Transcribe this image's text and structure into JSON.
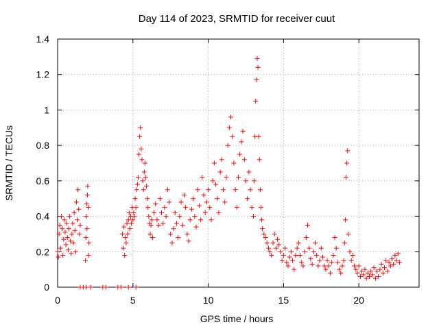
{
  "chart_data": {
    "type": "scatter",
    "title": "Day 114 of 2023, SRMTID for receiver cuut",
    "xlabel": "GPS time / hours",
    "ylabel": "SRMTID / TECUs",
    "xlim": [
      0,
      24
    ],
    "ylim": [
      0,
      1.4
    ],
    "xticks": [
      0,
      5,
      10,
      15,
      20
    ],
    "xtick_labels": [
      "0",
      "5",
      "10",
      "15",
      "20"
    ],
    "yticks": [
      0,
      0.2,
      0.4,
      0.6,
      0.8,
      1.0,
      1.2,
      1.4
    ],
    "ytick_labels": [
      "0",
      "0.2",
      "0.4",
      "0.6",
      "0.8",
      "1",
      "1.2",
      "1.4"
    ],
    "grid": true,
    "marker": "+",
    "color": "#ff0000",
    "series": [
      {
        "name": "SRMTID",
        "points": [
          [
            0.0,
            0.2
          ],
          [
            0.05,
            0.17
          ],
          [
            0.1,
            0.3
          ],
          [
            0.15,
            0.35
          ],
          [
            0.2,
            0.22
          ],
          [
            0.25,
            0.4
          ],
          [
            0.3,
            0.33
          ],
          [
            0.35,
            0.18
          ],
          [
            0.4,
            0.27
          ],
          [
            0.45,
            0.38
          ],
          [
            0.5,
            0.31
          ],
          [
            0.55,
            0.24
          ],
          [
            0.6,
            0.36
          ],
          [
            0.65,
            0.28
          ],
          [
            0.7,
            0.21
          ],
          [
            0.75,
            0.33
          ],
          [
            0.8,
            0.4
          ],
          [
            0.85,
            0.26
          ],
          [
            0.9,
            0.19
          ],
          [
            0.95,
            0.3
          ],
          [
            1.0,
            0.36
          ],
          [
            1.05,
            0.25
          ],
          [
            1.1,
            0.42
          ],
          [
            1.15,
            0.32
          ],
          [
            1.2,
            0.2
          ],
          [
            1.25,
            0.48
          ],
          [
            1.3,
            0.38
          ],
          [
            1.35,
            0.55
          ],
          [
            1.4,
            0.44
          ],
          [
            1.45,
            0.3
          ],
          [
            1.5,
            0.35
          ],
          [
            1.85,
            0.15
          ],
          [
            1.88,
            0.28
          ],
          [
            1.9,
            0.4
          ],
          [
            1.93,
            0.47
          ],
          [
            1.95,
            0.33
          ],
          [
            1.98,
            0.52
          ],
          [
            2.0,
            0.57
          ],
          [
            2.03,
            0.45
          ],
          [
            2.05,
            0.18
          ],
          [
            2.08,
            0.25
          ],
          [
            1.5,
            0.0
          ],
          [
            1.7,
            0.0
          ],
          [
            1.9,
            0.0
          ],
          [
            2.2,
            0.0
          ],
          [
            3.0,
            0.0
          ],
          [
            3.2,
            0.0
          ],
          [
            4.0,
            0.0
          ],
          [
            4.2,
            0.0
          ],
          [
            4.7,
            0.0
          ],
          [
            5.2,
            0.0
          ],
          [
            4.3,
            0.3
          ],
          [
            4.35,
            0.22
          ],
          [
            4.4,
            0.34
          ],
          [
            4.45,
            0.18
          ],
          [
            4.5,
            0.28
          ],
          [
            4.55,
            0.25
          ],
          [
            4.6,
            0.36
          ],
          [
            4.65,
            0.3
          ],
          [
            4.7,
            0.38
          ],
          [
            4.75,
            0.42
          ],
          [
            4.8,
            0.33
          ],
          [
            4.85,
            0.4
          ],
          [
            4.9,
            0.36
          ],
          [
            4.95,
            0.45
          ],
          [
            5.0,
            0.38
          ],
          [
            5.05,
            0.42
          ],
          [
            5.1,
            0.4
          ],
          [
            5.15,
            0.5
          ],
          [
            5.2,
            0.45
          ],
          [
            5.25,
            0.55
          ],
          [
            5.3,
            0.58
          ],
          [
            5.35,
            0.62
          ],
          [
            5.4,
            0.75
          ],
          [
            5.45,
            0.85
          ],
          [
            5.5,
            0.9
          ],
          [
            5.55,
            0.78
          ],
          [
            5.6,
            0.72
          ],
          [
            5.65,
            0.6
          ],
          [
            5.7,
            0.55
          ],
          [
            5.75,
            0.65
          ],
          [
            5.8,
            0.7
          ],
          [
            5.85,
            0.62
          ],
          [
            5.9,
            0.57
          ],
          [
            5.95,
            0.5
          ],
          [
            6.0,
            0.45
          ],
          [
            6.05,
            0.4
          ],
          [
            6.1,
            0.36
          ],
          [
            6.15,
            0.3
          ],
          [
            6.2,
            0.35
          ],
          [
            6.25,
            0.38
          ],
          [
            6.3,
            0.28
          ],
          [
            6.4,
            0.42
          ],
          [
            6.5,
            0.47
          ],
          [
            6.6,
            0.38
          ],
          [
            6.7,
            0.35
          ],
          [
            6.8,
            0.5
          ],
          [
            6.9,
            0.42
          ],
          [
            7.0,
            0.36
          ],
          [
            7.1,
            0.45
          ],
          [
            7.2,
            0.4
          ],
          [
            7.3,
            0.55
          ],
          [
            7.4,
            0.48
          ],
          [
            7.5,
            0.3
          ],
          [
            7.6,
            0.25
          ],
          [
            7.7,
            0.33
          ],
          [
            7.8,
            0.42
          ],
          [
            7.9,
            0.36
          ],
          [
            8.0,
            0.28
          ],
          [
            8.1,
            0.4
          ],
          [
            8.2,
            0.48
          ],
          [
            8.3,
            0.35
          ],
          [
            8.4,
            0.52
          ],
          [
            8.5,
            0.45
          ],
          [
            8.6,
            0.3
          ],
          [
            8.7,
            0.26
          ],
          [
            8.8,
            0.38
          ],
          [
            8.9,
            0.44
          ],
          [
            9.0,
            0.5
          ],
          [
            9.1,
            0.4
          ],
          [
            9.2,
            0.34
          ],
          [
            9.3,
            0.55
          ],
          [
            9.4,
            0.46
          ],
          [
            9.5,
            0.38
          ],
          [
            9.6,
            0.62
          ],
          [
            9.7,
            0.52
          ],
          [
            9.8,
            0.42
          ],
          [
            9.9,
            0.48
          ],
          [
            10.0,
            0.55
          ],
          [
            10.1,
            0.45
          ],
          [
            10.2,
            0.38
          ],
          [
            10.3,
            0.6
          ],
          [
            10.4,
            0.7
          ],
          [
            10.5,
            0.58
          ],
          [
            10.6,
            0.5
          ],
          [
            10.7,
            0.42
          ],
          [
            10.8,
            0.65
          ],
          [
            10.9,
            0.72
          ],
          [
            11.0,
            0.55
          ],
          [
            11.1,
            0.48
          ],
          [
            11.2,
            0.62
          ],
          [
            11.3,
            0.8
          ],
          [
            11.4,
            0.9
          ],
          [
            11.5,
            0.96
          ],
          [
            11.6,
            0.85
          ],
          [
            11.7,
            0.7
          ],
          [
            11.8,
            0.55
          ],
          [
            11.9,
            0.45
          ],
          [
            12.0,
            0.62
          ],
          [
            12.1,
            0.75
          ],
          [
            12.2,
            0.82
          ],
          [
            12.3,
            0.88
          ],
          [
            12.4,
            0.72
          ],
          [
            12.5,
            0.6
          ],
          [
            12.6,
            0.5
          ],
          [
            12.7,
            0.65
          ],
          [
            12.8,
            0.55
          ],
          [
            12.9,
            0.45
          ],
          [
            13.0,
            0.4
          ],
          [
            13.05,
            0.6
          ],
          [
            13.1,
            0.85
          ],
          [
            13.15,
            1.05
          ],
          [
            13.2,
            1.17
          ],
          [
            13.25,
            1.29
          ],
          [
            13.3,
            1.24
          ],
          [
            13.35,
            0.85
          ],
          [
            13.4,
            0.72
          ],
          [
            13.45,
            0.55
          ],
          [
            13.5,
            0.45
          ],
          [
            13.55,
            0.38
          ],
          [
            13.6,
            0.33
          ],
          [
            13.7,
            0.3
          ],
          [
            13.8,
            0.28
          ],
          [
            13.9,
            0.25
          ],
          [
            14.0,
            0.22
          ],
          [
            14.1,
            0.2
          ],
          [
            14.2,
            0.18
          ],
          [
            14.3,
            0.25
          ],
          [
            14.4,
            0.3
          ],
          [
            14.5,
            0.22
          ],
          [
            14.6,
            0.27
          ],
          [
            14.7,
            0.24
          ],
          [
            14.8,
            0.2
          ],
          [
            14.9,
            0.15
          ],
          [
            15.0,
            0.18
          ],
          [
            15.1,
            0.22
          ],
          [
            15.2,
            0.14
          ],
          [
            15.3,
            0.12
          ],
          [
            15.4,
            0.17
          ],
          [
            15.5,
            0.2
          ],
          [
            15.6,
            0.15
          ],
          [
            15.7,
            0.1
          ],
          [
            15.8,
            0.18
          ],
          [
            15.9,
            0.22
          ],
          [
            16.0,
            0.25
          ],
          [
            16.1,
            0.18
          ],
          [
            16.2,
            0.14
          ],
          [
            16.3,
            0.12
          ],
          [
            16.4,
            0.2
          ],
          [
            16.5,
            0.28
          ],
          [
            16.6,
            0.35
          ],
          [
            16.7,
            0.22
          ],
          [
            16.8,
            0.16
          ],
          [
            16.9,
            0.13
          ],
          [
            17.0,
            0.2
          ],
          [
            17.1,
            0.25
          ],
          [
            17.2,
            0.18
          ],
          [
            17.3,
            0.12
          ],
          [
            17.4,
            0.15
          ],
          [
            17.5,
            0.22
          ],
          [
            17.6,
            0.17
          ],
          [
            17.7,
            0.12
          ],
          [
            17.8,
            0.1
          ],
          [
            17.9,
            0.15
          ],
          [
            18.0,
            0.12
          ],
          [
            18.1,
            0.08
          ],
          [
            18.2,
            0.14
          ],
          [
            18.3,
            0.18
          ],
          [
            18.4,
            0.28
          ],
          [
            18.5,
            0.22
          ],
          [
            18.6,
            0.14
          ],
          [
            18.7,
            0.1
          ],
          [
            18.8,
            0.08
          ],
          [
            18.9,
            0.12
          ],
          [
            19.0,
            0.15
          ],
          [
            19.05,
            0.25
          ],
          [
            19.1,
            0.38
          ],
          [
            19.15,
            0.62
          ],
          [
            19.2,
            0.7
          ],
          [
            19.25,
            0.77
          ],
          [
            19.3,
            0.3
          ],
          [
            19.4,
            0.2
          ],
          [
            19.5,
            0.15
          ],
          [
            19.6,
            0.18
          ],
          [
            19.7,
            0.12
          ],
          [
            19.8,
            0.1
          ],
          [
            19.9,
            0.08
          ],
          [
            20.0,
            0.12
          ],
          [
            20.1,
            0.06
          ],
          [
            20.2,
            0.09
          ],
          [
            20.3,
            0.07
          ],
          [
            20.4,
            0.1
          ],
          [
            20.5,
            0.05
          ],
          [
            20.6,
            0.08
          ],
          [
            20.7,
            0.06
          ],
          [
            20.8,
            0.09
          ],
          [
            20.9,
            0.07
          ],
          [
            21.0,
            0.11
          ],
          [
            21.1,
            0.05
          ],
          [
            21.2,
            0.09
          ],
          [
            21.3,
            0.06
          ],
          [
            21.4,
            0.1
          ],
          [
            21.5,
            0.13
          ],
          [
            21.6,
            0.08
          ],
          [
            21.7,
            0.11
          ],
          [
            21.8,
            0.15
          ],
          [
            21.9,
            0.09
          ],
          [
            22.0,
            0.14
          ],
          [
            22.1,
            0.12
          ],
          [
            22.2,
            0.16
          ],
          [
            22.3,
            0.13
          ],
          [
            22.4,
            0.18
          ],
          [
            22.5,
            0.15
          ],
          [
            22.6,
            0.19
          ],
          [
            22.7,
            0.14
          ]
        ]
      }
    ]
  }
}
